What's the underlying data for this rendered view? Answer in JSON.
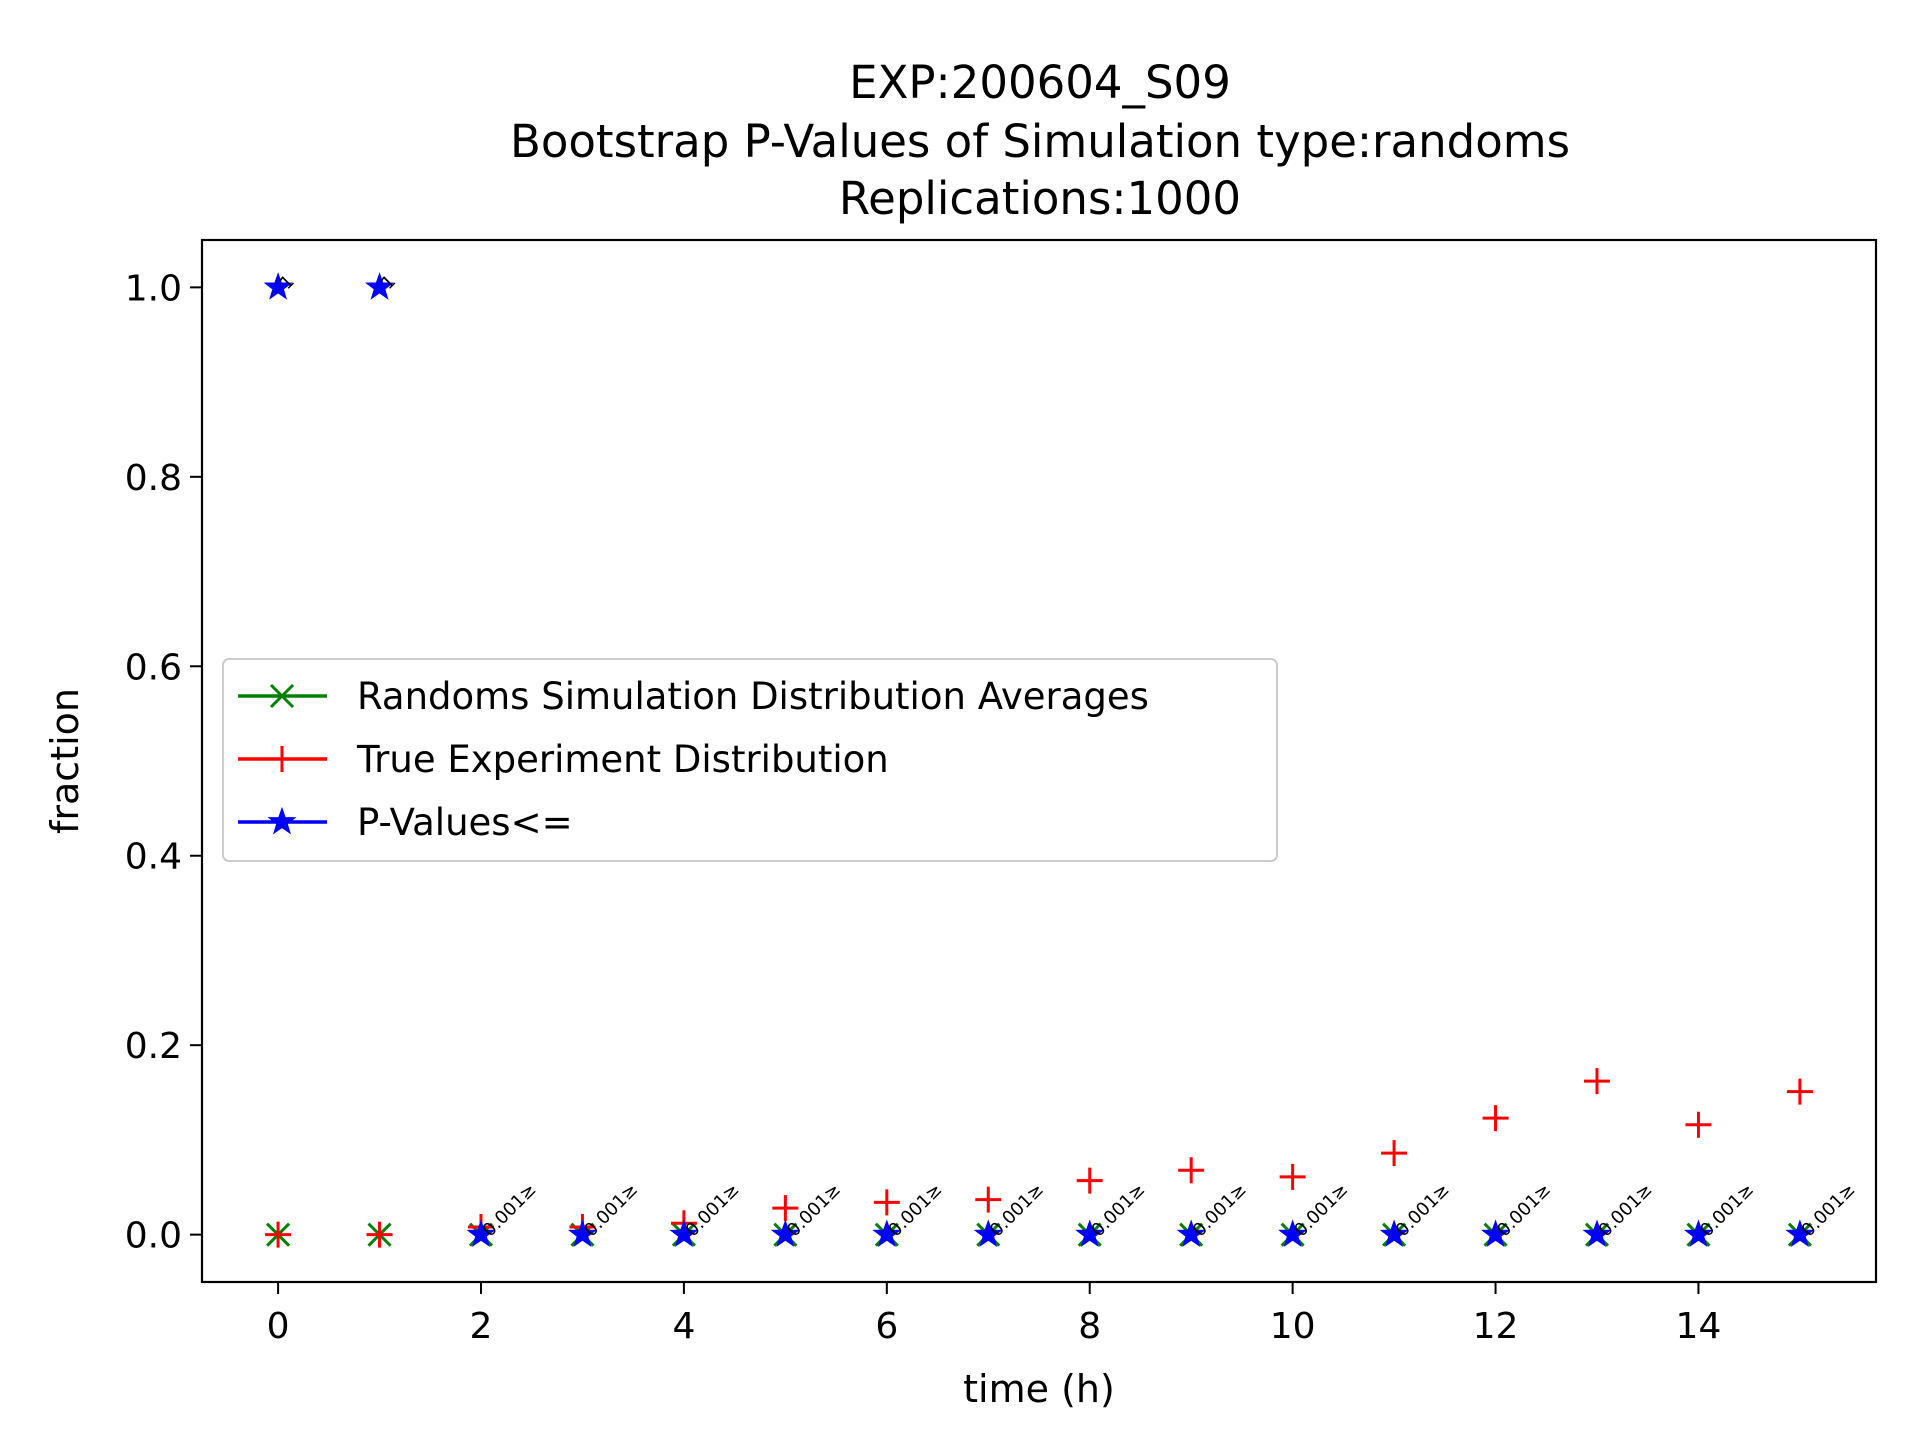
{
  "chart_data": {
    "type": "scatter",
    "title_lines": [
      "EXP:200604_S09",
      "Bootstrap P-Values of Simulation type:randoms",
      "Replications:1000"
    ],
    "xlabel": "time (h)",
    "ylabel": "fraction",
    "xlim": [
      -0.75,
      15.75
    ],
    "ylim": [
      -0.05,
      1.05
    ],
    "xticks": [
      0,
      2,
      4,
      6,
      8,
      10,
      12,
      14
    ],
    "xtick_labels": [
      "0",
      "2",
      "4",
      "6",
      "8",
      "10",
      "12",
      "14"
    ],
    "yticks": [
      0.0,
      0.2,
      0.4,
      0.6,
      0.8,
      1.0
    ],
    "ytick_labels": [
      "0.0",
      "0.2",
      "0.4",
      "0.6",
      "0.8",
      "1.0"
    ],
    "grid": false,
    "legend_position": "center-left",
    "x": [
      0,
      1,
      2,
      3,
      4,
      5,
      6,
      7,
      8,
      9,
      10,
      11,
      12,
      13,
      14,
      15
    ],
    "series": [
      {
        "name": "Randoms Simulation Distribution Averages",
        "marker": "x",
        "color": "#008000",
        "values": [
          0,
          0,
          0,
          0,
          0,
          0,
          0,
          0,
          0,
          0,
          0,
          0,
          0,
          0,
          0,
          0
        ]
      },
      {
        "name": "True Experiment Distribution",
        "marker": "+",
        "color": "#ff0000",
        "values": [
          0,
          0,
          0.008,
          0.008,
          0.012,
          0.028,
          0.034,
          0.037,
          0.057,
          0.068,
          0.061,
          0.086,
          0.123,
          0.162,
          0.116,
          0.151
        ]
      },
      {
        "name": "P-Values<=",
        "marker": "star",
        "color": "#0000ff",
        "values": [
          1,
          1,
          0,
          0,
          0,
          0,
          0,
          0,
          0,
          0,
          0,
          0,
          0,
          0,
          0,
          0
        ]
      }
    ],
    "annotations": [
      "1",
      "1",
      "0.001≥",
      "0.001≥",
      "0.001≥",
      "0.001≥",
      "0.001≥",
      "0.001≥",
      "0.001≥",
      "0.001≥",
      "0.001≥",
      "0.001≥",
      "0.001≥",
      "0.001≥",
      "0.001≥",
      "0.001≥"
    ]
  }
}
